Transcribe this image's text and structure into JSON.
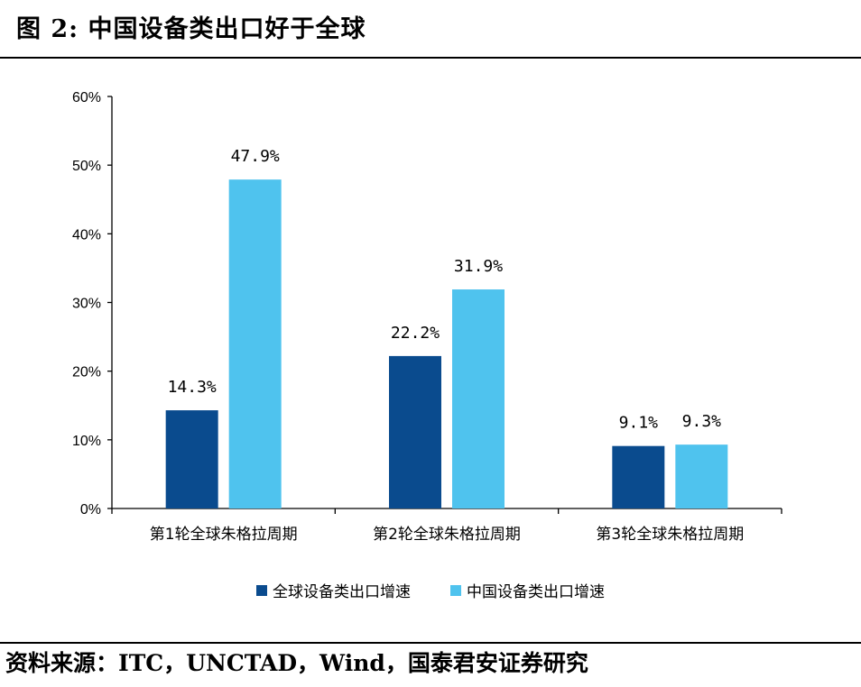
{
  "figure": {
    "title": "图 2:  中国设备类出口好于全球",
    "source": "资料来源：ITC，UNCTAD，Wind，国泰君安证券研究"
  },
  "chart_data": {
    "type": "bar",
    "categories": [
      "第1轮全球朱格拉周期",
      "第2轮全球朱格拉周期",
      "第3轮全球朱格拉周期"
    ],
    "series": [
      {
        "name": "全球设备类出口增速",
        "values": [
          14.3,
          22.2,
          9.1
        ],
        "labels": [
          "14.3%",
          "22.2%",
          "9.1%"
        ],
        "color": "#0a4b8e"
      },
      {
        "name": "中国设备类出口增速",
        "values": [
          47.9,
          31.9,
          9.3
        ],
        "labels": [
          "47.9%",
          "31.9%",
          "9.3%"
        ],
        "color": "#4fc3ee"
      }
    ],
    "ylim": [
      0,
      60
    ],
    "yticks": [
      0,
      10,
      20,
      30,
      40,
      50,
      60
    ],
    "ytick_labels": [
      "0%",
      "10%",
      "20%",
      "30%",
      "40%",
      "50%",
      "60%"
    ],
    "xlabel": "",
    "ylabel": "",
    "grid": false,
    "legend_position": "bottom"
  }
}
